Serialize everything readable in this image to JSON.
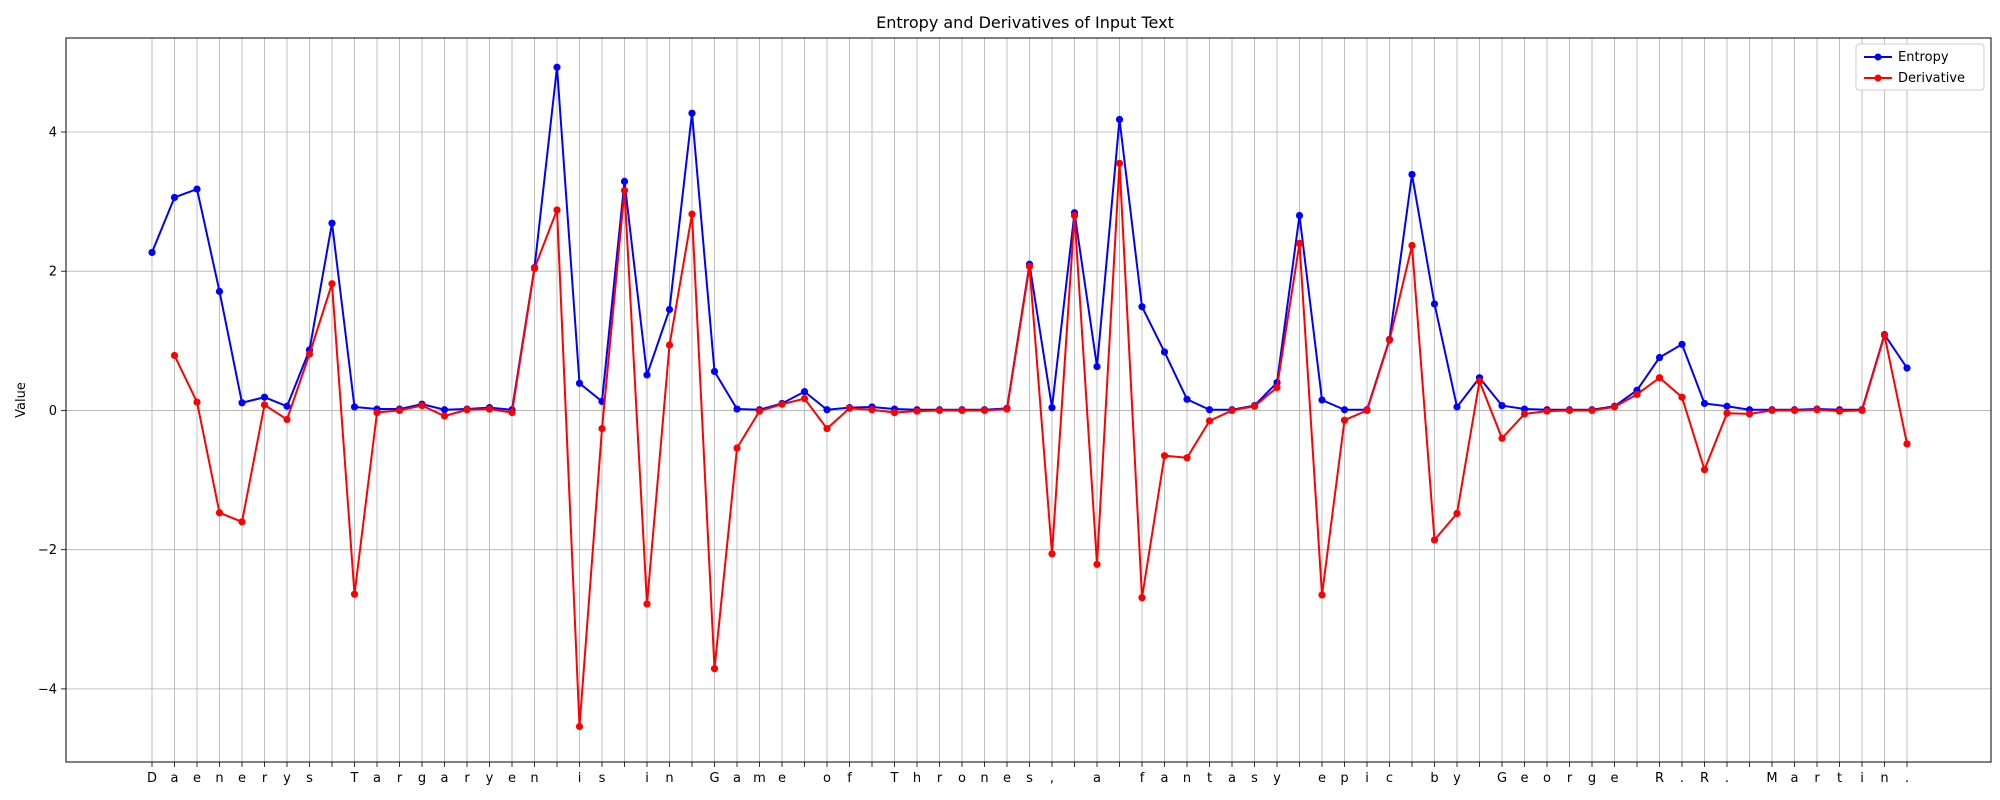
{
  "chart_data": {
    "type": "line",
    "title": "Entropy and Derivatives of Input Text",
    "xlabel": "",
    "ylabel": "Value",
    "ylim": [
      -5.05,
      5.35
    ],
    "yticks": [
      -4,
      -2,
      0,
      2,
      4
    ],
    "grid": true,
    "legend_position": "top-right",
    "categories": [
      "D",
      "a",
      "e",
      "n",
      "e",
      "r",
      "y",
      "s",
      " ",
      "T",
      "a",
      "r",
      "g",
      "a",
      "r",
      "y",
      "e",
      "n",
      " ",
      "i",
      "s",
      " ",
      "i",
      "n",
      " ",
      "G",
      "a",
      "m",
      "e",
      " ",
      "o",
      "f",
      " ",
      "T",
      "h",
      "r",
      "o",
      "n",
      "e",
      "s",
      ",",
      " ",
      "a",
      " ",
      "f",
      "a",
      "n",
      "t",
      "a",
      "s",
      "y",
      " ",
      "e",
      "p",
      "i",
      "c",
      " ",
      "b",
      "y",
      " ",
      "G",
      "e",
      "o",
      "r",
      "g",
      "e",
      " ",
      "R",
      ".",
      "R",
      ".",
      " ",
      "M",
      "a",
      "r",
      "t",
      "i",
      "n",
      "."
    ],
    "series": [
      {
        "name": "Entropy",
        "color": "#0000ff",
        "values": [
          2.27,
          3.06,
          3.18,
          1.71,
          0.11,
          0.19,
          0.06,
          0.87,
          2.69,
          0.05,
          0.02,
          0.02,
          0.09,
          0.01,
          0.02,
          0.04,
          0.01,
          2.05,
          4.93,
          0.39,
          0.13,
          3.29,
          0.51,
          1.45,
          4.27,
          0.56,
          0.02,
          0.01,
          0.1,
          0.27,
          0.01,
          0.04,
          0.05,
          0.02,
          0.01,
          0.01,
          0.01,
          0.01,
          0.03,
          2.1,
          0.04,
          2.84,
          0.63,
          4.18,
          1.49,
          0.84,
          0.16,
          0.01,
          0.01,
          0.07,
          0.4,
          2.8,
          0.15,
          0.01,
          0.01,
          1.02,
          3.39,
          1.53,
          0.05,
          0.47,
          0.07,
          0.02,
          0.01,
          0.01,
          0.01,
          0.06,
          0.29,
          0.76,
          0.95,
          0.1,
          0.06,
          0.01,
          0.01,
          0.01,
          0.02,
          0.01,
          0.01,
          1.09,
          0.61
        ]
      },
      {
        "name": "Derivative",
        "color": "#ff0000",
        "values": [
          null,
          0.79,
          0.12,
          -1.47,
          -1.6,
          0.08,
          -0.13,
          0.81,
          1.82,
          -2.64,
          -0.03,
          0.0,
          0.07,
          -0.08,
          0.01,
          0.02,
          -0.03,
          2.04,
          2.88,
          -4.54,
          -0.26,
          3.16,
          -2.78,
          0.94,
          2.82,
          -3.71,
          -0.54,
          -0.01,
          0.09,
          0.17,
          -0.26,
          0.03,
          0.01,
          -0.03,
          -0.01,
          0.0,
          0.0,
          0.0,
          0.02,
          2.07,
          -2.06,
          2.8,
          -2.21,
          3.55,
          -2.69,
          -0.65,
          -0.68,
          -0.15,
          0.0,
          0.06,
          0.33,
          2.4,
          -2.65,
          -0.14,
          0.0,
          1.01,
          2.37,
          -1.86,
          -1.48,
          0.42,
          -0.4,
          -0.05,
          -0.01,
          0.0,
          0.0,
          0.05,
          0.23,
          0.47,
          0.19,
          -0.85,
          -0.04,
          -0.05,
          0.0,
          0.0,
          0.01,
          -0.01,
          0.0,
          1.08,
          -0.48
        ]
      }
    ]
  }
}
